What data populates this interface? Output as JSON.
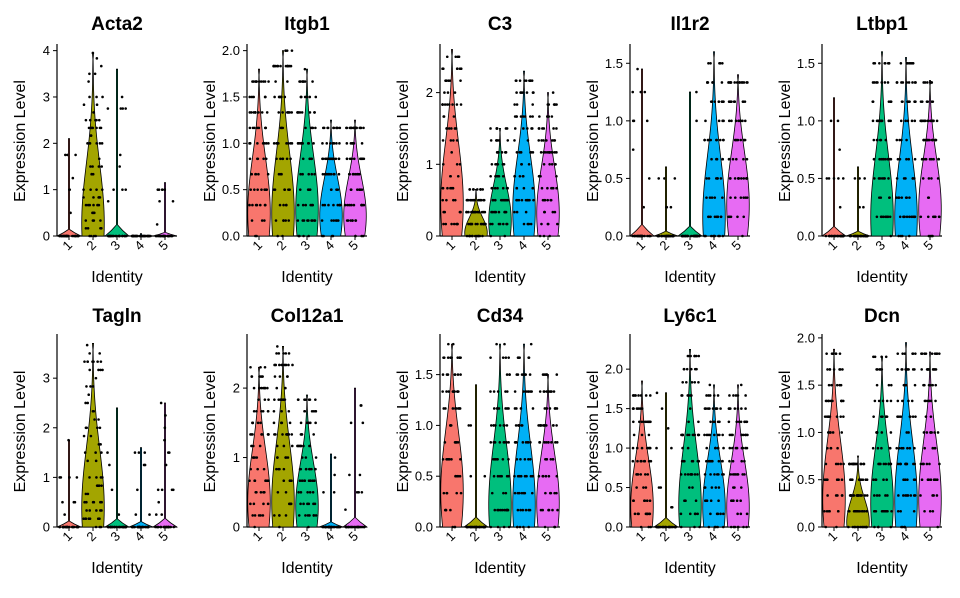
{
  "chart_data": {
    "type": "violin",
    "layout": "2 rows x 5 columns",
    "xlabel": "Identity",
    "ylabel": "Expression Level",
    "categories": [
      "1",
      "2",
      "3",
      "4",
      "5"
    ],
    "colors": [
      "#F8766D",
      "#A3A500",
      "#00BF7D",
      "#00B0F6",
      "#E76BF3"
    ],
    "panels": [
      {
        "title": "Acta2",
        "ylim": [
          0,
          4.1
        ],
        "yticks": [
          "0",
          "1",
          "2",
          "3",
          "4"
        ],
        "max": [
          2.1,
          3.95,
          3.6,
          0.05,
          1.15
        ],
        "shape": [
          0.08,
          0.8,
          0.08,
          0.05,
          0.08
        ]
      },
      {
        "title": "Itgb1",
        "ylim": [
          0,
          2.05
        ],
        "yticks": [
          "0.0",
          "0.5",
          "1.0",
          "1.5",
          "2.0"
        ],
        "max": [
          1.8,
          2.0,
          1.8,
          1.25,
          1.25
        ],
        "shape": [
          0.6,
          0.65,
          0.55,
          0.5,
          0.5
        ]
      },
      {
        "title": "C3",
        "ylim": [
          0,
          2.65
        ],
        "yticks": [
          "0",
          "1",
          "2"
        ],
        "max": [
          2.6,
          0.65,
          1.5,
          2.3,
          2.0
        ],
        "shape": [
          0.5,
          0.8,
          0.6,
          0.55,
          0.55
        ]
      },
      {
        "title": "Il1r2",
        "ylim": [
          0,
          1.65
        ],
        "yticks": [
          "0.0",
          "0.5",
          "1.0",
          "1.5"
        ],
        "max": [
          1.45,
          0.6,
          1.25,
          1.6,
          1.4
        ],
        "shape": [
          0.04,
          0.04,
          0.04,
          0.7,
          0.45
        ]
      },
      {
        "title": "Ltbp1",
        "ylim": [
          0,
          1.65
        ],
        "yticks": [
          "0.0",
          "0.5",
          "1.0",
          "1.5"
        ],
        "max": [
          1.2,
          0.6,
          1.6,
          1.55,
          1.35
        ],
        "shape": [
          0.04,
          0.04,
          0.7,
          0.7,
          0.5
        ]
      },
      {
        "title": "Tagln",
        "ylim": [
          0,
          3.85
        ],
        "yticks": [
          "0",
          "1",
          "2",
          "3"
        ],
        "max": [
          1.75,
          3.7,
          2.4,
          1.6,
          2.5
        ],
        "shape": [
          0.04,
          0.7,
          0.04,
          0.04,
          0.04
        ]
      },
      {
        "title": "Col12a1",
        "ylim": [
          0,
          2.75
        ],
        "yticks": [
          "0",
          "1",
          "2"
        ],
        "max": [
          2.3,
          2.6,
          1.9,
          1.05,
          2.0
        ],
        "shape": [
          0.55,
          0.6,
          0.55,
          0.04,
          0.04
        ]
      },
      {
        "title": "Cd34",
        "ylim": [
          0,
          1.88
        ],
        "yticks": [
          "0.0",
          "0.5",
          "1.0",
          "1.5"
        ],
        "max": [
          1.8,
          1.4,
          1.8,
          1.8,
          1.5
        ],
        "shape": [
          0.45,
          0.04,
          0.65,
          0.65,
          0.55
        ]
      },
      {
        "title": "Ly6c1",
        "ylim": [
          0,
          2.42
        ],
        "yticks": [
          "0.0",
          "0.5",
          "1.0",
          "1.5",
          "2.0"
        ],
        "max": [
          1.85,
          1.7,
          2.25,
          1.8,
          1.8
        ],
        "shape": [
          0.6,
          0.04,
          0.65,
          0.6,
          0.6
        ]
      },
      {
        "title": "Dcn",
        "ylim": [
          0,
          2.02
        ],
        "yticks": [
          "0.0",
          "0.5",
          "1.0",
          "1.5",
          "2.0"
        ],
        "max": [
          1.88,
          0.75,
          1.8,
          1.95,
          1.85
        ],
        "shape": [
          0.55,
          0.8,
          0.6,
          0.6,
          0.55
        ]
      }
    ]
  }
}
